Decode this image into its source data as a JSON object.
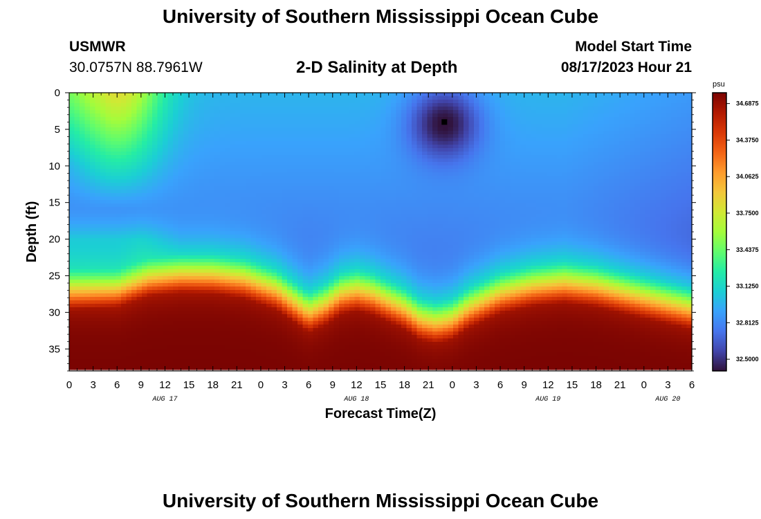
{
  "header": {
    "title": "University of Southern Mississippi Ocean Cube",
    "station_code": "USMWR",
    "station_coords": "30.0757N  88.7961W",
    "plot_subtitle": "2-D Salinity at Depth",
    "model_start_label": "Model Start Time",
    "model_start_value": "08/17/2023 Hour 21"
  },
  "footer": {
    "title": "University of Southern Mississippi Ocean Cube"
  },
  "chart_data": {
    "type": "heatmap",
    "title": "2-D Salinity at Depth",
    "xlabel": "Forecast Time(Z)",
    "ylabel": "Depth (ft)",
    "x_unit": "hours since Aug 17 00Z",
    "xlim": [
      0,
      78
    ],
    "ylim": [
      38,
      0
    ],
    "x_tick_values": [
      0,
      3,
      6,
      9,
      12,
      15,
      18,
      21,
      24,
      27,
      30,
      33,
      36,
      39,
      42,
      45,
      48,
      51,
      54,
      57,
      60,
      63,
      66,
      69,
      72,
      75,
      78
    ],
    "x_tick_labels": [
      "0",
      "3",
      "6",
      "9",
      "12",
      "15",
      "18",
      "21",
      "0",
      "3",
      "6",
      "9",
      "12",
      "15",
      "18",
      "21",
      "0",
      "3",
      "6",
      "9",
      "12",
      "15",
      "18",
      "21",
      "0",
      "3",
      "6"
    ],
    "date_labels": [
      {
        "text": "AUG 17",
        "x": 12
      },
      {
        "text": "AUG 18",
        "x": 36
      },
      {
        "text": "AUG 19",
        "x": 60
      },
      {
        "text": "AUG 20",
        "x": 75
      }
    ],
    "y_ticks": [
      0,
      5,
      10,
      15,
      20,
      25,
      30,
      35
    ],
    "y_tick_labels": [
      "0",
      "5",
      "10",
      "15",
      "20",
      "25",
      "30",
      "35"
    ],
    "colorbar": {
      "unit": "psu",
      "min": 32.4,
      "max": 34.78,
      "ticks": [
        34.6875,
        34.375,
        34.0625,
        33.75,
        33.4375,
        33.125,
        32.8125,
        32.5
      ],
      "tick_labels": [
        "34.6875",
        "34.3750",
        "34.0625",
        "33.7500",
        "33.4375",
        "33.1250",
        "32.8125",
        "32.5000"
      ],
      "colors": [
        "#30123b",
        "#4145ab",
        "#4675ed",
        "#39a2fc",
        "#1bcfd4",
        "#24eca6",
        "#61fc6c",
        "#a4fc3b",
        "#d1e834",
        "#f3c63a",
        "#fe9b2d",
        "#f36315",
        "#d93806",
        "#b11901",
        "#7a0402"
      ]
    },
    "halocline_depth_ft": {
      "x_hours": [
        0,
        6,
        10,
        14,
        18,
        22,
        26,
        28,
        30,
        32,
        34,
        36,
        38,
        42,
        44,
        46,
        48,
        50,
        54,
        58,
        62,
        66,
        70,
        74,
        78
      ],
      "values": [
        24,
        24,
        22.5,
        22,
        22,
        22.5,
        24,
        25.5,
        27,
        26,
        24.5,
        24,
        24.5,
        26.5,
        28,
        28.5,
        28,
        26.5,
        24.5,
        23.5,
        23,
        23.5,
        24.5,
        25.5,
        26.5
      ]
    },
    "surface_fresh_spot": {
      "x_hours": 47,
      "depth_ft": 4,
      "value": 32.4
    },
    "marker": {
      "x_hours": 47,
      "depth_ft": 4
    }
  }
}
